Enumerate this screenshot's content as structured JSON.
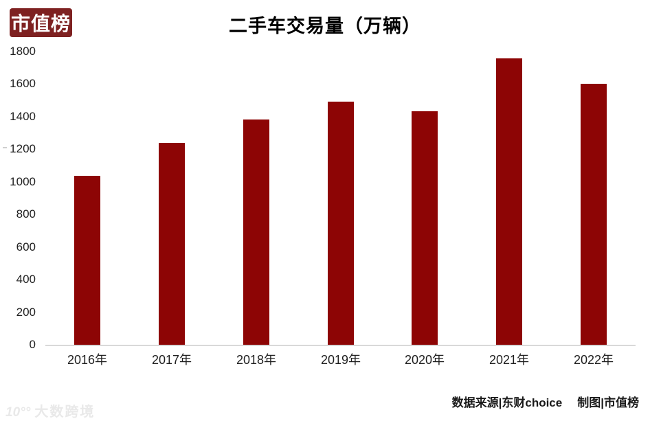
{
  "logo": {
    "text": "市值榜"
  },
  "title": "二手车交易量（万辆）",
  "chart_data": {
    "type": "bar",
    "title": "二手车交易量（万辆）",
    "categories": [
      "2016年",
      "2017年",
      "2018年",
      "2019年",
      "2020年",
      "2021年",
      "2022年"
    ],
    "values": [
      1039,
      1240,
      1382,
      1492,
      1434,
      1758,
      1602
    ],
    "xlabel": "",
    "ylabel": "",
    "ylim": [
      0,
      1800
    ],
    "yticks": [
      0,
      200,
      400,
      600,
      800,
      1000,
      1200,
      1400,
      1600,
      1800
    ],
    "grid": false,
    "legend": "none",
    "bar_color": "#8d0505",
    "axis_line_color": "#d9d9d9"
  },
  "footer": {
    "source_label": "数据来源|东财choice",
    "credit_label": "制图|市值榜"
  },
  "watermark": {
    "mark": "10°°",
    "text": "大数跨境"
  }
}
